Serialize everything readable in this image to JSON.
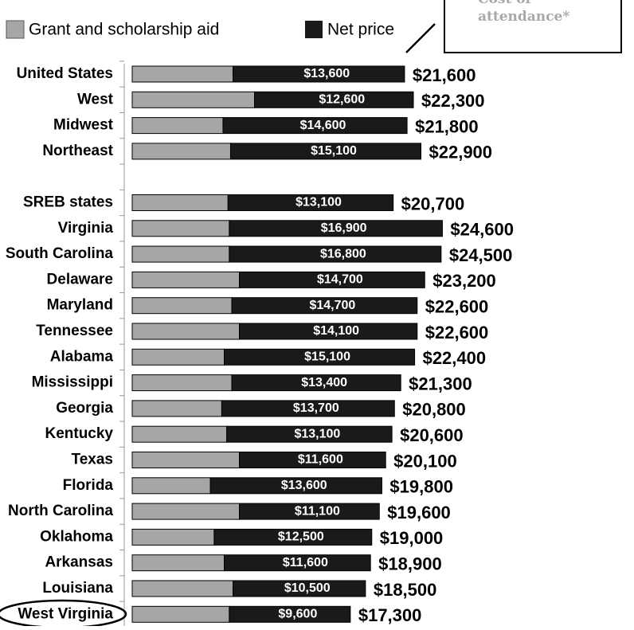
{
  "chart_data": {
    "type": "stacked-bar-horizontal",
    "annotation": "Cost of attendance*",
    "categories": [
      "United States",
      "West",
      "Midwest",
      "Northeast",
      null,
      "SREB states",
      "Virginia",
      "South Carolina",
      "Delaware",
      "Maryland",
      "Tennessee",
      "Alabama",
      "Mississippi",
      "Georgia",
      "Kentucky",
      "Texas",
      "Florida",
      "North Carolina",
      "Oklahoma",
      "Arkansas",
      "Louisiana",
      "West Virginia"
    ],
    "series": [
      {
        "name": "Grant and scholarship aid",
        "color": "#a6a6a6",
        "values": [
          8000,
          9700,
          7200,
          7800,
          null,
          7600,
          7700,
          7700,
          8500,
          7900,
          8500,
          7300,
          7900,
          7100,
          7500,
          8500,
          6200,
          8500,
          6500,
          7300,
          8000,
          7700
        ]
      },
      {
        "name": "Net price",
        "color": "#1a1a1a",
        "values": [
          13600,
          12600,
          14600,
          15100,
          null,
          13100,
          16900,
          16800,
          14700,
          14700,
          14100,
          15100,
          13400,
          13700,
          13100,
          11600,
          13600,
          11100,
          12500,
          11600,
          10500,
          9600
        ],
        "value_labels": [
          "$13,600",
          "$12,600",
          "$14,600",
          "$15,100",
          null,
          "$13,100",
          "$16,900",
          "$16,800",
          "$14,700",
          "$14,700",
          "$14,100",
          "$15,100",
          "$13,400",
          "$13,700",
          "$13,100",
          "$11,600",
          "$13,600",
          "$11,100",
          "$12,500",
          "$11,600",
          "$10,500",
          "$9,600"
        ]
      }
    ],
    "total_labels": [
      "$21,600",
      "$22,300",
      "$21,800",
      "$22,900",
      null,
      "$20,700",
      "$24,600",
      "$24,500",
      "$23,200",
      "$22,600",
      "$22,600",
      "$22,400",
      "$21,300",
      "$20,800",
      "$20,600",
      "$20,100",
      "$19,800",
      "$19,600",
      "$19,000",
      "$18,900",
      "$18,500",
      "$17,300"
    ]
  }
}
